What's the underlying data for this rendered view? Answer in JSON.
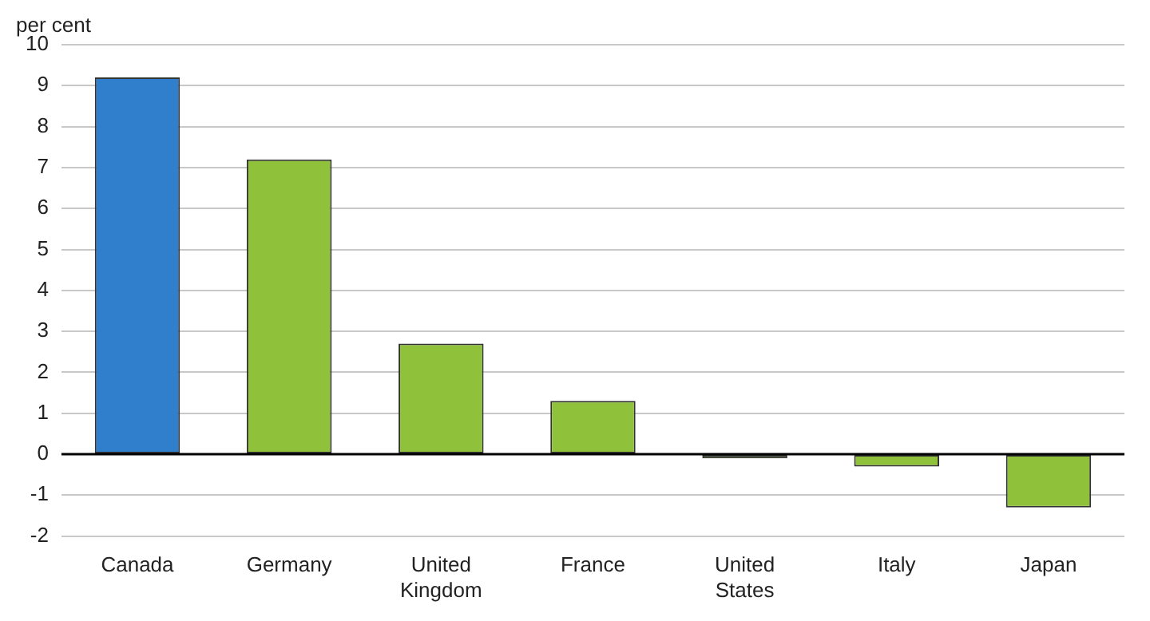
{
  "chart_data": {
    "type": "bar",
    "ylabel": "per cent",
    "categories": [
      "Canada",
      "Germany",
      "United Kingdom",
      "France",
      "United States",
      "Italy",
      "Japan"
    ],
    "values": [
      9.2,
      7.2,
      2.7,
      1.3,
      -0.1,
      -0.3,
      -1.3
    ],
    "colors": [
      "#2f7fcc",
      "#8fc23a",
      "#8fc23a",
      "#8fc23a",
      "#8fc23a",
      "#8fc23a",
      "#8fc23a"
    ],
    "ylim": [
      -2,
      10
    ],
    "yticks": [
      -2,
      -1,
      0,
      1,
      2,
      3,
      4,
      5,
      6,
      7,
      8,
      9,
      10
    ],
    "grid": "y",
    "legend": false
  }
}
